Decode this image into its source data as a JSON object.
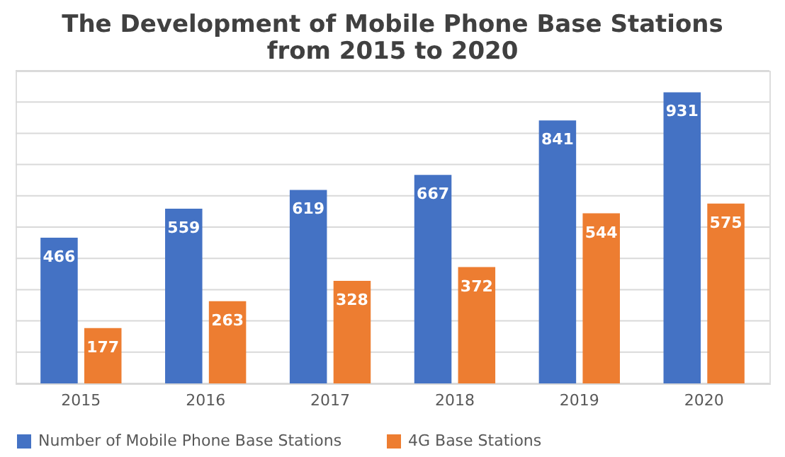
{
  "chart_data": {
    "type": "bar",
    "title": "The Development of Mobile Phone Base Stations\nfrom 2015 to 2020",
    "categories": [
      "2015",
      "2016",
      "2017",
      "2018",
      "2019",
      "2020"
    ],
    "series": [
      {
        "name": "Number of Mobile Phone Base Stations",
        "color": "#4472c4",
        "values": [
          466,
          559,
          619,
          667,
          841,
          931
        ]
      },
      {
        "name": "4G Base Stations",
        "color": "#ed7d31",
        "values": [
          177,
          263,
          328,
          372,
          544,
          575
        ]
      }
    ],
    "ylim": [
      0,
      1000
    ],
    "yticks": [
      {
        "value": 0,
        "label": null
      },
      {
        "value": 100,
        "label": null
      },
      {
        "value": 200,
        "label": null
      },
      {
        "value": 300,
        "label": null
      },
      {
        "value": 400,
        "label": null
      },
      {
        "value": 500,
        "label": null
      },
      {
        "value": 600,
        "label": null
      },
      {
        "value": 700,
        "label": null
      },
      {
        "value": 800,
        "label": null
      },
      {
        "value": 900,
        "label": null
      },
      {
        "value": 1000,
        "label": null
      }
    ],
    "tick_labels": "x",
    "grid": "y",
    "legend": "bottom",
    "data_labels": true
  }
}
